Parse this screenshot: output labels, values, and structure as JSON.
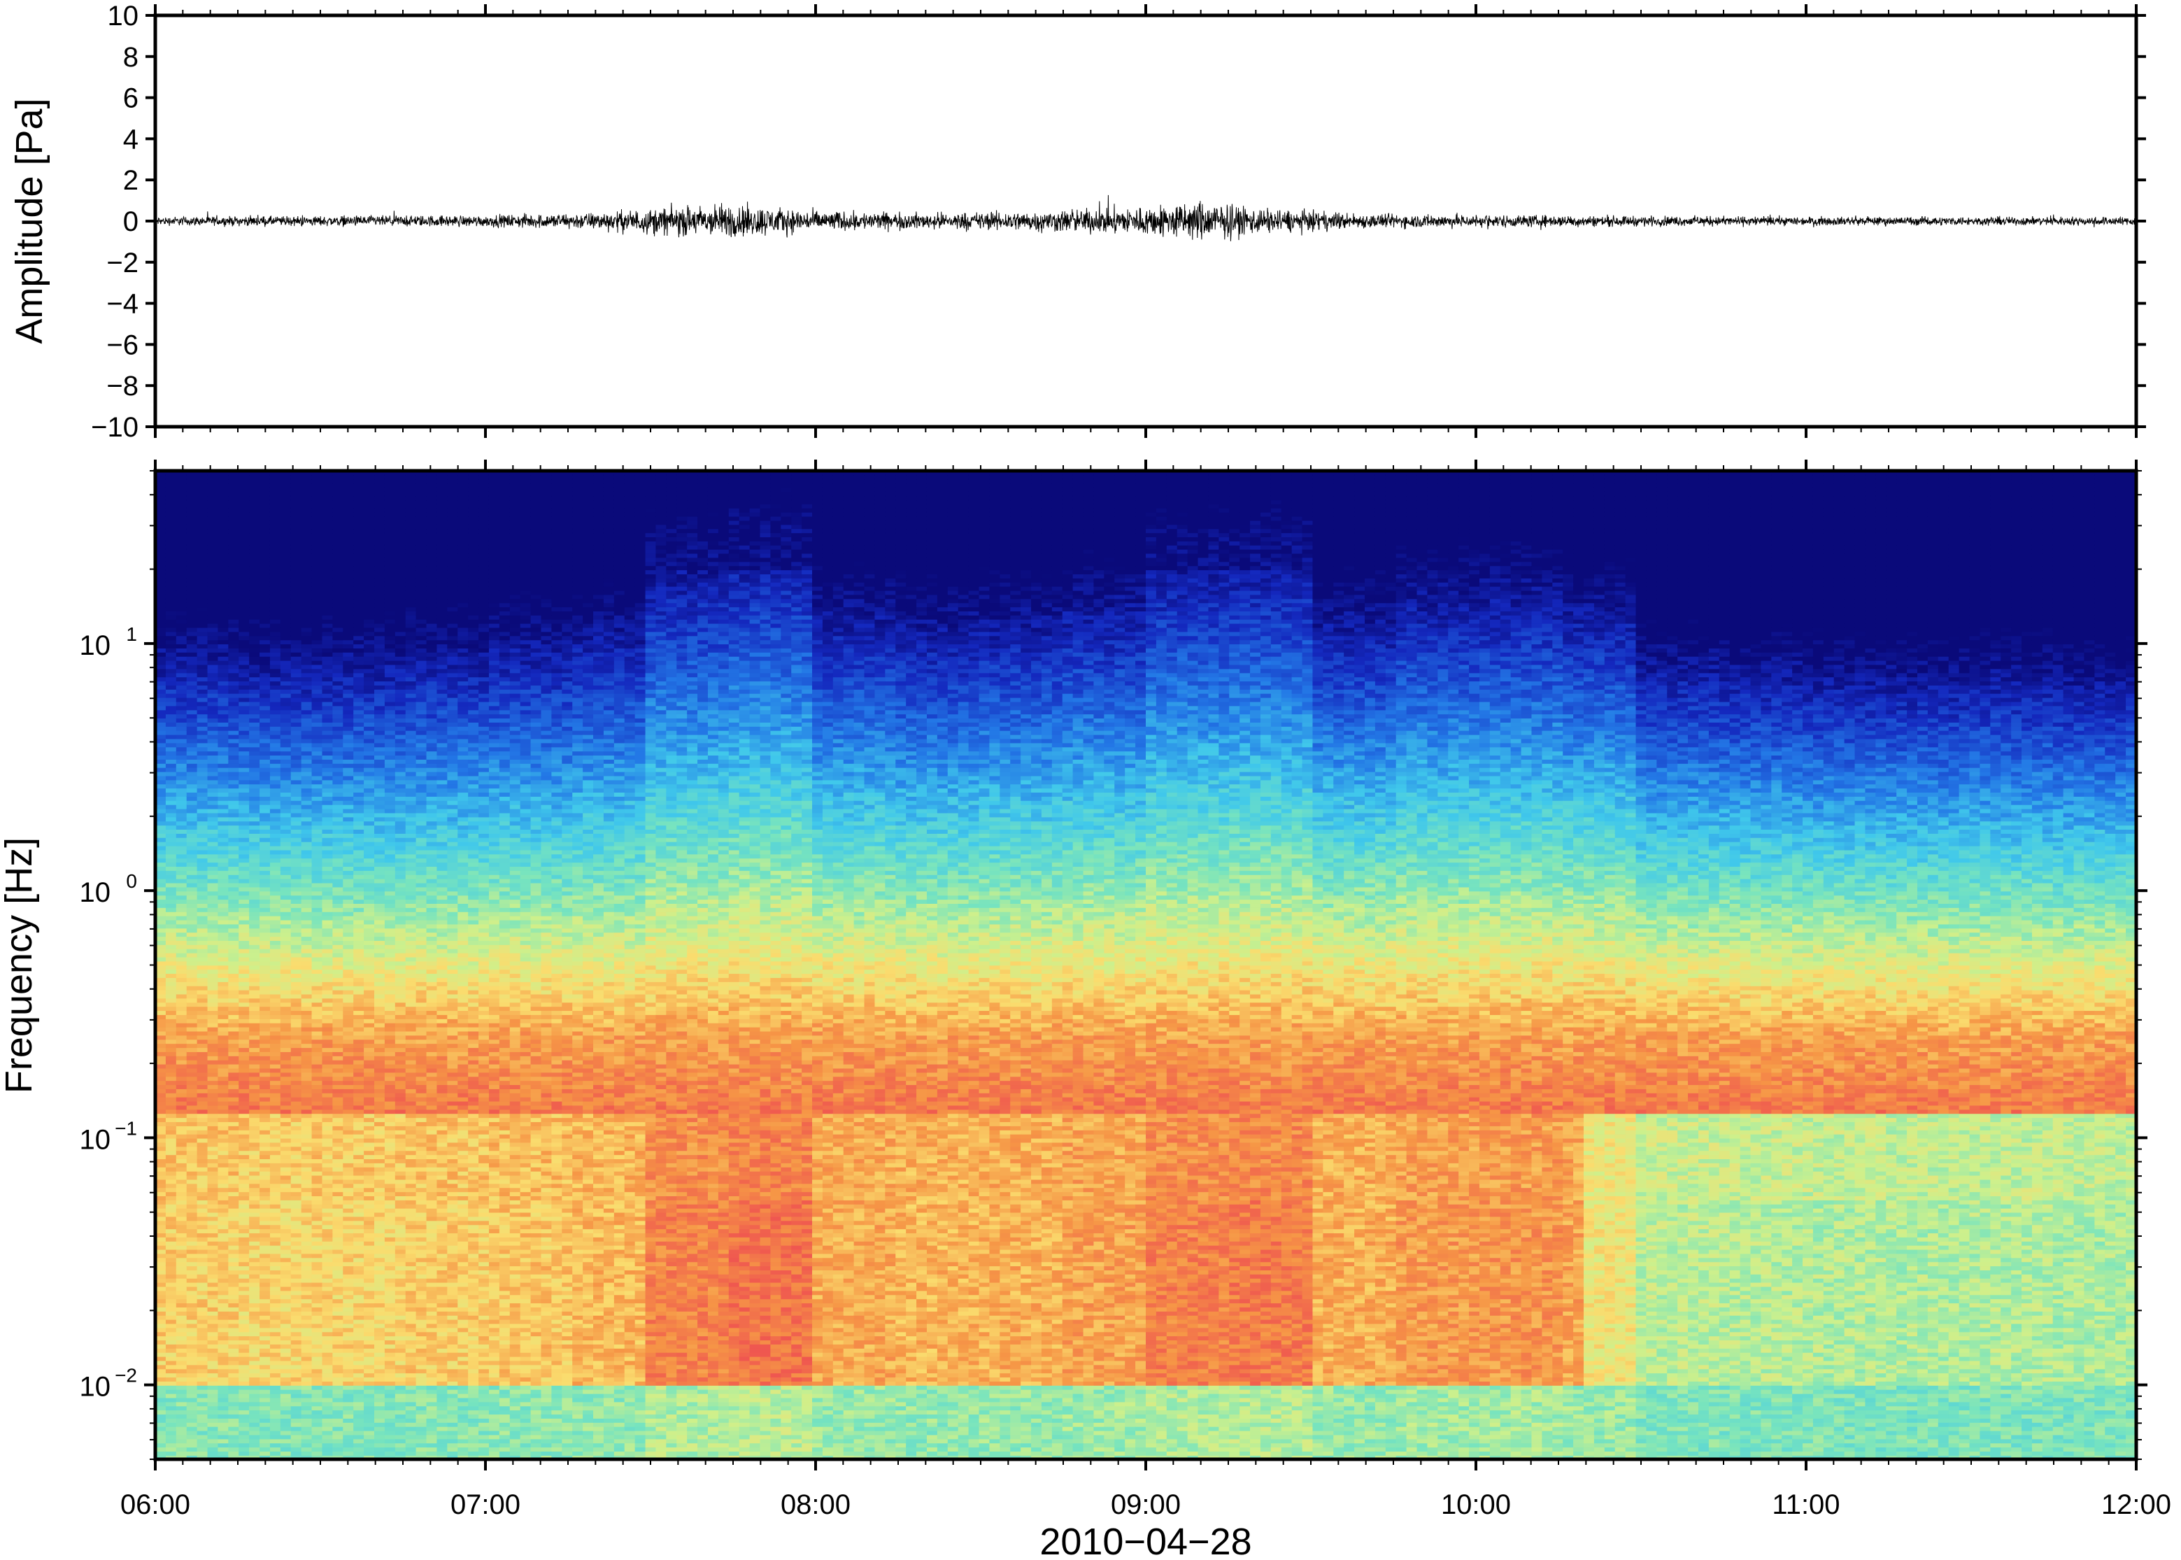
{
  "chart_data": [
    {
      "type": "line",
      "panel": "waveform",
      "ylabel": "Amplitude [Pa]",
      "ylim": [
        -10,
        10
      ],
      "yticks": [
        {
          "value": 10,
          "label": "10"
        },
        {
          "value": 8,
          "label": "8"
        },
        {
          "value": 6,
          "label": "6"
        },
        {
          "value": 4,
          "label": "4"
        },
        {
          "value": 2,
          "label": "2"
        },
        {
          "value": 0,
          "label": "0"
        },
        {
          "value": -2,
          "label": "−2"
        },
        {
          "value": -4,
          "label": "−4"
        },
        {
          "value": -6,
          "label": "−6"
        },
        {
          "value": -8,
          "label": "−8"
        },
        {
          "value": -10,
          "label": "−10"
        }
      ],
      "xlim": [
        "06:00",
        "12:00"
      ],
      "envelope": {
        "times": [
          "06:00",
          "06:30",
          "07:00",
          "07:20",
          "07:35",
          "07:45",
          "08:00",
          "08:20",
          "08:40",
          "09:00",
          "09:10",
          "09:20",
          "09:40",
          "10:00",
          "10:30",
          "11:00",
          "11:30",
          "12:00"
        ],
        "amplitude_pa": [
          0.3,
          0.35,
          0.4,
          0.6,
          1.0,
          1.2,
          0.7,
          0.55,
          0.7,
          1.0,
          1.4,
          0.9,
          0.5,
          0.45,
          0.35,
          0.3,
          0.3,
          0.3
        ]
      },
      "grid": false
    },
    {
      "type": "heatmap",
      "panel": "spectrogram",
      "ylabel": "Frequency [Hz]",
      "xlabel": "2010−04−28",
      "yscale": "log",
      "ylim": [
        0.005,
        50
      ],
      "yticks": [
        {
          "value": 10,
          "base": "10",
          "exp": "1"
        },
        {
          "value": 1,
          "base": "10",
          "exp": "0"
        },
        {
          "value": 0.1,
          "base": "10",
          "exp": "−1"
        },
        {
          "value": 0.01,
          "base": "10",
          "exp": "−2"
        }
      ],
      "xticks": [
        "06:00",
        "07:00",
        "08:00",
        "09:00",
        "10:00",
        "11:00",
        "12:00"
      ],
      "xlim": [
        "06:00",
        "12:00"
      ],
      "colormap": "jet",
      "colors": {
        "low": "#0a0a7a",
        "mid": "#40d0e8",
        "high": "#ef5450"
      },
      "time_windows": [
        "06:00",
        "06:15",
        "06:30",
        "06:45",
        "07:00",
        "07:15",
        "07:30",
        "07:45",
        "08:00",
        "08:15",
        "08:30",
        "08:45",
        "09:00",
        "09:15",
        "09:30",
        "09:45",
        "10:00",
        "10:15",
        "10:30",
        "10:45",
        "11:00",
        "11:15",
        "11:30",
        "11:45"
      ],
      "activity_by_window": [
        0.45,
        0.42,
        0.43,
        0.46,
        0.5,
        0.55,
        0.82,
        0.9,
        0.62,
        0.57,
        0.6,
        0.66,
        0.83,
        0.86,
        0.6,
        0.7,
        0.72,
        0.65,
        0.4,
        0.38,
        0.36,
        0.35,
        0.36,
        0.34
      ],
      "grid": false
    }
  ]
}
